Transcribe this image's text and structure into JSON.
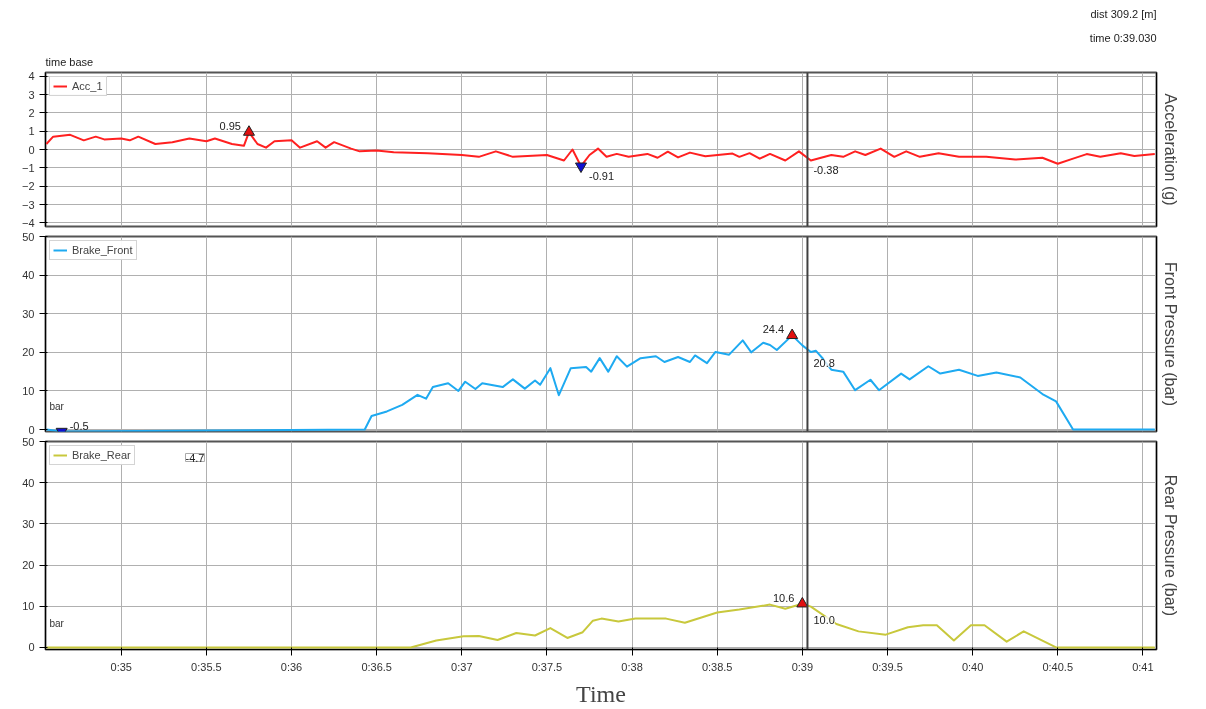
{
  "chart_data": [
    {
      "type": "line",
      "ylabel": "Acceleration (g)",
      "legend": "top left",
      "grid": true,
      "tick_labels": "y",
      "xlim": [
        34.555,
        41.08
      ],
      "ylim": [
        -4.2,
        4.2
      ],
      "yticks": [
        -4,
        -3,
        -2,
        -1,
        0,
        1,
        2,
        3,
        4
      ],
      "xticks": [
        35,
        35.5,
        36,
        36.5,
        37,
        37.5,
        38,
        38.5,
        39,
        39.5,
        40,
        40.5,
        41
      ],
      "ref_lines": [
        {
          "axis": "x",
          "value": 39.03,
          "color": "#404040"
        }
      ],
      "annotations": [
        "time base",
        "time 0:39.030",
        "dist 309.2 [m]",
        {
          "text": "-0.38",
          "x": 39.03,
          "y": -0.38
        },
        {
          "text": "-0.91",
          "x": 37.7,
          "y": -0.91
        },
        {
          "text": "0.95",
          "x": 35.75,
          "y": 0.95
        }
      ],
      "series": [
        {
          "name": "Acc_1",
          "color": "#ff2020",
          "x": [
            34.56,
            34.6,
            34.65,
            34.7,
            34.78,
            34.85,
            34.9,
            35.0,
            35.05,
            35.1,
            35.2,
            35.3,
            35.4,
            35.5,
            35.55,
            35.65,
            35.72,
            35.75,
            35.8,
            35.85,
            35.9,
            36.0,
            36.05,
            36.15,
            36.2,
            36.25,
            36.35,
            36.4,
            36.5,
            36.6,
            36.8,
            37.0,
            37.1,
            37.2,
            37.3,
            37.5,
            37.6,
            37.65,
            37.7,
            37.75,
            37.8,
            37.85,
            37.91,
            37.98,
            38.09,
            38.15,
            38.21,
            38.27,
            38.34,
            38.43,
            38.59,
            38.63,
            38.69,
            38.75,
            38.81,
            38.9,
            38.98,
            39.05,
            39.17,
            39.24,
            39.31,
            39.37,
            39.46,
            39.54,
            39.61,
            39.69,
            39.8,
            39.92,
            40.08,
            40.25,
            40.41,
            40.5,
            40.59,
            40.67,
            40.75,
            40.87,
            40.95,
            41.07
          ],
          "values": [
            0.3,
            0.7,
            0.75,
            0.8,
            0.5,
            0.7,
            0.55,
            0.6,
            0.5,
            0.7,
            0.3,
            0.4,
            0.6,
            0.45,
            0.6,
            0.3,
            0.2,
            0.95,
            0.3,
            0.1,
            0.45,
            0.5,
            0.1,
            0.45,
            0.1,
            0.4,
            0.05,
            -0.1,
            -0.05,
            -0.15,
            -0.2,
            -0.3,
            -0.4,
            -0.1,
            -0.4,
            -0.3,
            -0.6,
            0.0,
            -0.91,
            -0.3,
            0.05,
            -0.4,
            -0.24,
            -0.4,
            -0.24,
            -0.45,
            -0.12,
            -0.43,
            -0.17,
            -0.37,
            -0.22,
            -0.4,
            -0.2,
            -0.5,
            -0.24,
            -0.6,
            -0.1,
            -0.6,
            -0.3,
            -0.4,
            -0.1,
            -0.3,
            0.05,
            -0.4,
            -0.1,
            -0.4,
            -0.2,
            -0.4,
            -0.4,
            -0.55,
            -0.45,
            -0.78,
            -0.5,
            -0.25,
            -0.4,
            -0.2,
            -0.35,
            -0.25
          ]
        }
      ]
    },
    {
      "type": "line",
      "ylabel": "Front Pressure (bar)",
      "legend": "top left",
      "grid": true,
      "tick_labels": "y",
      "xlim": [
        34.555,
        41.08
      ],
      "ylim": [
        -0.5,
        50
      ],
      "yticks": [
        0,
        10,
        20,
        30,
        40,
        50
      ],
      "xticks": [
        35,
        35.5,
        36,
        36.5,
        37,
        37.5,
        38,
        38.5,
        39,
        39.5,
        40,
        40.5,
        41
      ],
      "ref_lines": [
        {
          "axis": "x",
          "value": 39.03,
          "color": "#404040"
        }
      ],
      "annotations": [
        "bar",
        {
          "text": "20.8",
          "x": 39.03,
          "y": 20.8
        },
        {
          "text": "-0.5",
          "x": 34.65,
          "y": -0.5
        },
        {
          "text": "24.4",
          "x": 38.94,
          "y": 24.4
        }
      ],
      "series": [
        {
          "name": "Brake_Front",
          "color": "#1eaaf1",
          "x": [
            34.56,
            34.65,
            36.43,
            36.47,
            36.56,
            36.65,
            36.74,
            36.79,
            36.83,
            36.92,
            36.98,
            37.02,
            37.08,
            37.12,
            37.24,
            37.3,
            37.37,
            37.43,
            37.46,
            37.52,
            37.57,
            37.64,
            37.73,
            37.76,
            37.81,
            37.86,
            37.91,
            37.97,
            38.05,
            38.14,
            38.19,
            38.27,
            38.34,
            38.37,
            38.44,
            38.49,
            38.57,
            38.65,
            38.7,
            38.77,
            38.81,
            38.85,
            38.94,
            39.0,
            39.05,
            39.08,
            39.12,
            39.17,
            39.24,
            39.31,
            39.4,
            39.45,
            39.58,
            39.63,
            39.74,
            39.81,
            39.92,
            40.03,
            40.14,
            40.28,
            40.41,
            40.49,
            40.59,
            41.07
          ],
          "values": [
            0,
            -0.5,
            0,
            3.5,
            4.7,
            6.4,
            9,
            8,
            11,
            12,
            10,
            12.4,
            10.5,
            12,
            11,
            13,
            10.6,
            12.7,
            11.6,
            15.9,
            8.9,
            15.9,
            16.2,
            15,
            18.5,
            15,
            19,
            16.3,
            18.5,
            19,
            17.5,
            18.8,
            17.5,
            19.2,
            17.2,
            20.1,
            19.4,
            23.1,
            20,
            22.5,
            21.9,
            20.6,
            24.4,
            21.8,
            20.1,
            20.4,
            18.4,
            15.5,
            15,
            10.2,
            12.9,
            10.2,
            14.5,
            13,
            16.4,
            14.5,
            15.5,
            13.9,
            14.8,
            13.5,
            9.2,
            7.3,
            0,
            0
          ]
        }
      ]
    },
    {
      "type": "line",
      "ylabel": "Rear Pressure (bar)",
      "xlabel": "Time",
      "legend": "top left",
      "grid": true,
      "xlim": [
        34.555,
        41.08
      ],
      "ylim": [
        -0.5,
        50
      ],
      "yticks": [
        0,
        10,
        20,
        30,
        40,
        50
      ],
      "xticks": [
        {
          "value": 35,
          "label": "0:35"
        },
        {
          "value": 35.5,
          "label": "0:35.5"
        },
        {
          "value": 36,
          "label": "0:36"
        },
        {
          "value": 36.5,
          "label": "0:36.5"
        },
        {
          "value": 37,
          "label": "0:37"
        },
        {
          "value": 37.5,
          "label": "0:37.5"
        },
        {
          "value": 38,
          "label": "0:38"
        },
        {
          "value": 38.5,
          "label": "0:38.5"
        },
        {
          "value": 39,
          "label": "0:39"
        },
        {
          "value": 39.5,
          "label": "0:39.5"
        },
        {
          "value": 40,
          "label": "0:40"
        },
        {
          "value": 40.5,
          "label": "0:40.5"
        },
        {
          "value": 41,
          "label": "0:41"
        }
      ],
      "ref_lines": [
        {
          "axis": "x",
          "value": 39.03,
          "color": "#404040"
        }
      ],
      "annotations": [
        "bar",
        "-4.7",
        {
          "text": "10.0",
          "x": 39.03,
          "y": 10.0
        },
        {
          "text": "10.6",
          "x": 39.0,
          "y": 10.6
        }
      ],
      "series": [
        {
          "name": "Brake_Rear",
          "color": "#c8c83c",
          "x": [
            34.56,
            36.7,
            36.85,
            37.01,
            37.1,
            37.21,
            37.32,
            37.43,
            37.52,
            37.62,
            37.71,
            37.77,
            37.82,
            37.92,
            38.02,
            38.2,
            38.31,
            38.5,
            38.63,
            38.81,
            38.9,
            39.0,
            39.05,
            39.2,
            39.33,
            39.49,
            39.62,
            39.71,
            39.79,
            39.89,
            39.99,
            40.07,
            40.2,
            40.3,
            40.49,
            41.07
          ],
          "values": [
            0,
            0,
            1.7,
            2.7,
            2.8,
            1.8,
            3.5,
            2.9,
            4.7,
            2.3,
            3.7,
            6.5,
            7,
            6.3,
            7,
            7,
            6,
            8.5,
            9.2,
            10.4,
            9.4,
            10.6,
            9.9,
            5.7,
            3.9,
            3.1,
            4.9,
            5.4,
            5.4,
            1.7,
            5.4,
            5.4,
            1.4,
            3.9,
            0,
            0
          ]
        }
      ]
    }
  ]
}
